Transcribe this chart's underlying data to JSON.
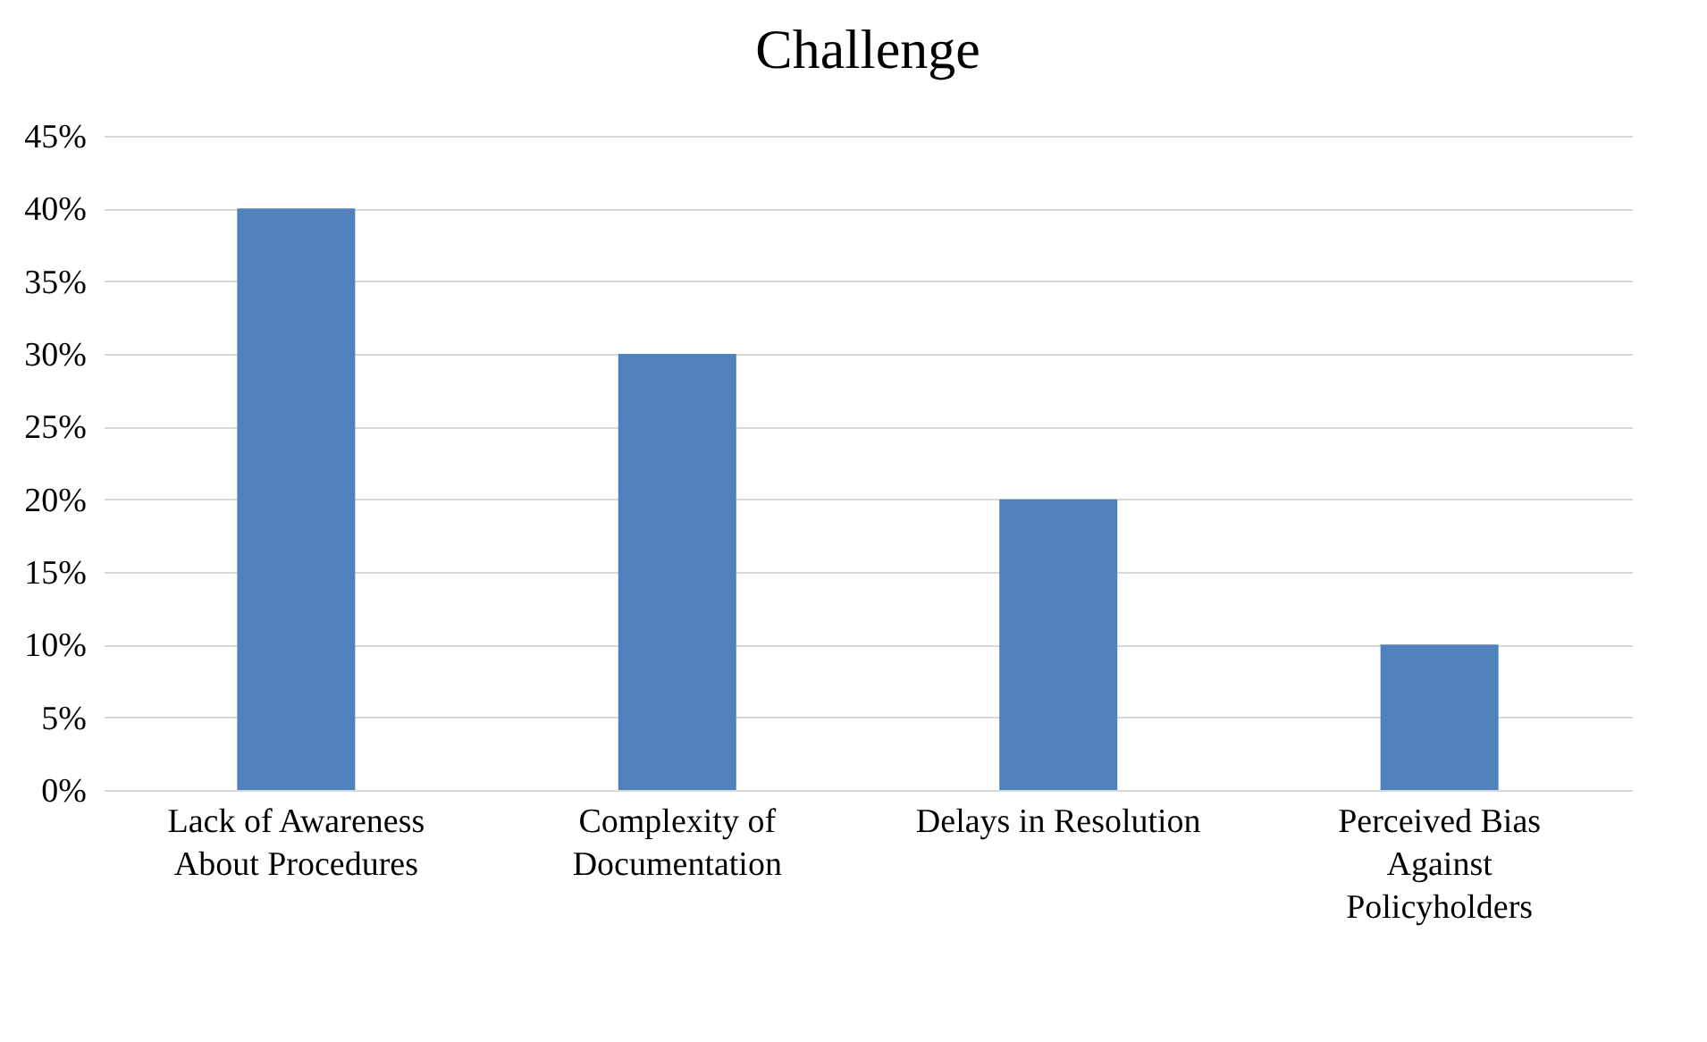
{
  "chart_data": {
    "type": "bar",
    "title": "Challenge",
    "categories": [
      "Lack of Awareness About Procedures",
      "Complexity of Documentation",
      "Delays in Resolution",
      "Perceived Bias Against Policyholders"
    ],
    "values": [
      40,
      30,
      20,
      10
    ],
    "color": "#4f81bd",
    "ylim": [
      0,
      45
    ],
    "yticks": [
      {
        "value": 0,
        "label": "0%"
      },
      {
        "value": 5,
        "label": "5%"
      },
      {
        "value": 10,
        "label": "10%"
      },
      {
        "value": 15,
        "label": "15%"
      },
      {
        "value": 20,
        "label": "20%"
      },
      {
        "value": 25,
        "label": "25%"
      },
      {
        "value": 30,
        "label": "30%"
      },
      {
        "value": 35,
        "label": "35%"
      },
      {
        "value": 40,
        "label": "40%"
      },
      {
        "value": 45,
        "label": "45%"
      }
    ],
    "grid": "y"
  }
}
